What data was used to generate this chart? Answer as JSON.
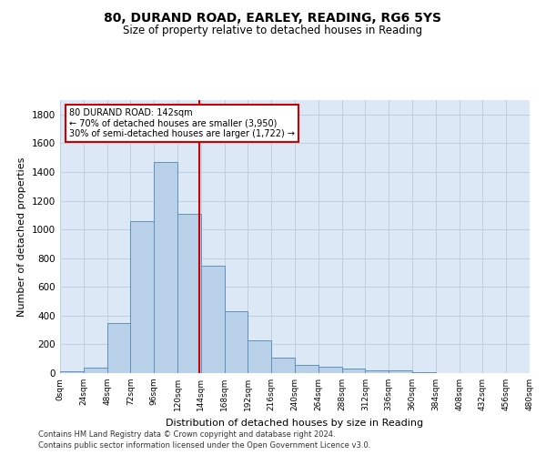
{
  "title1": "80, DURAND ROAD, EARLEY, READING, RG6 5YS",
  "title2": "Size of property relative to detached houses in Reading",
  "xlabel": "Distribution of detached houses by size in Reading",
  "ylabel": "Number of detached properties",
  "bin_edges": [
    0,
    24,
    48,
    72,
    96,
    120,
    144,
    168,
    192,
    216,
    240,
    264,
    288,
    312,
    336,
    360,
    384,
    408,
    432,
    456,
    480
  ],
  "bar_heights": [
    10,
    35,
    350,
    1060,
    1470,
    1110,
    745,
    430,
    225,
    110,
    55,
    45,
    30,
    20,
    20,
    8,
    3,
    3,
    2,
    2
  ],
  "bar_color": "#b8d0e8",
  "bar_edgecolor": "#6090c0",
  "property_size": 142,
  "vline_color": "#cc0000",
  "annotation_text": "80 DURAND ROAD: 142sqm\n← 70% of detached houses are smaller (3,950)\n30% of semi-detached houses are larger (1,722) →",
  "annotation_box_color": "#cc0000",
  "ylim": [
    0,
    1900
  ],
  "yticks": [
    0,
    200,
    400,
    600,
    800,
    1000,
    1200,
    1400,
    1600,
    1800
  ],
  "footnote1": "Contains HM Land Registry data © Crown copyright and database right 2024.",
  "footnote2": "Contains public sector information licensed under the Open Government Licence v3.0.",
  "background_color": "#ffffff",
  "plot_bg_color": "#dce8f5",
  "grid_color": "#c0cfe0"
}
